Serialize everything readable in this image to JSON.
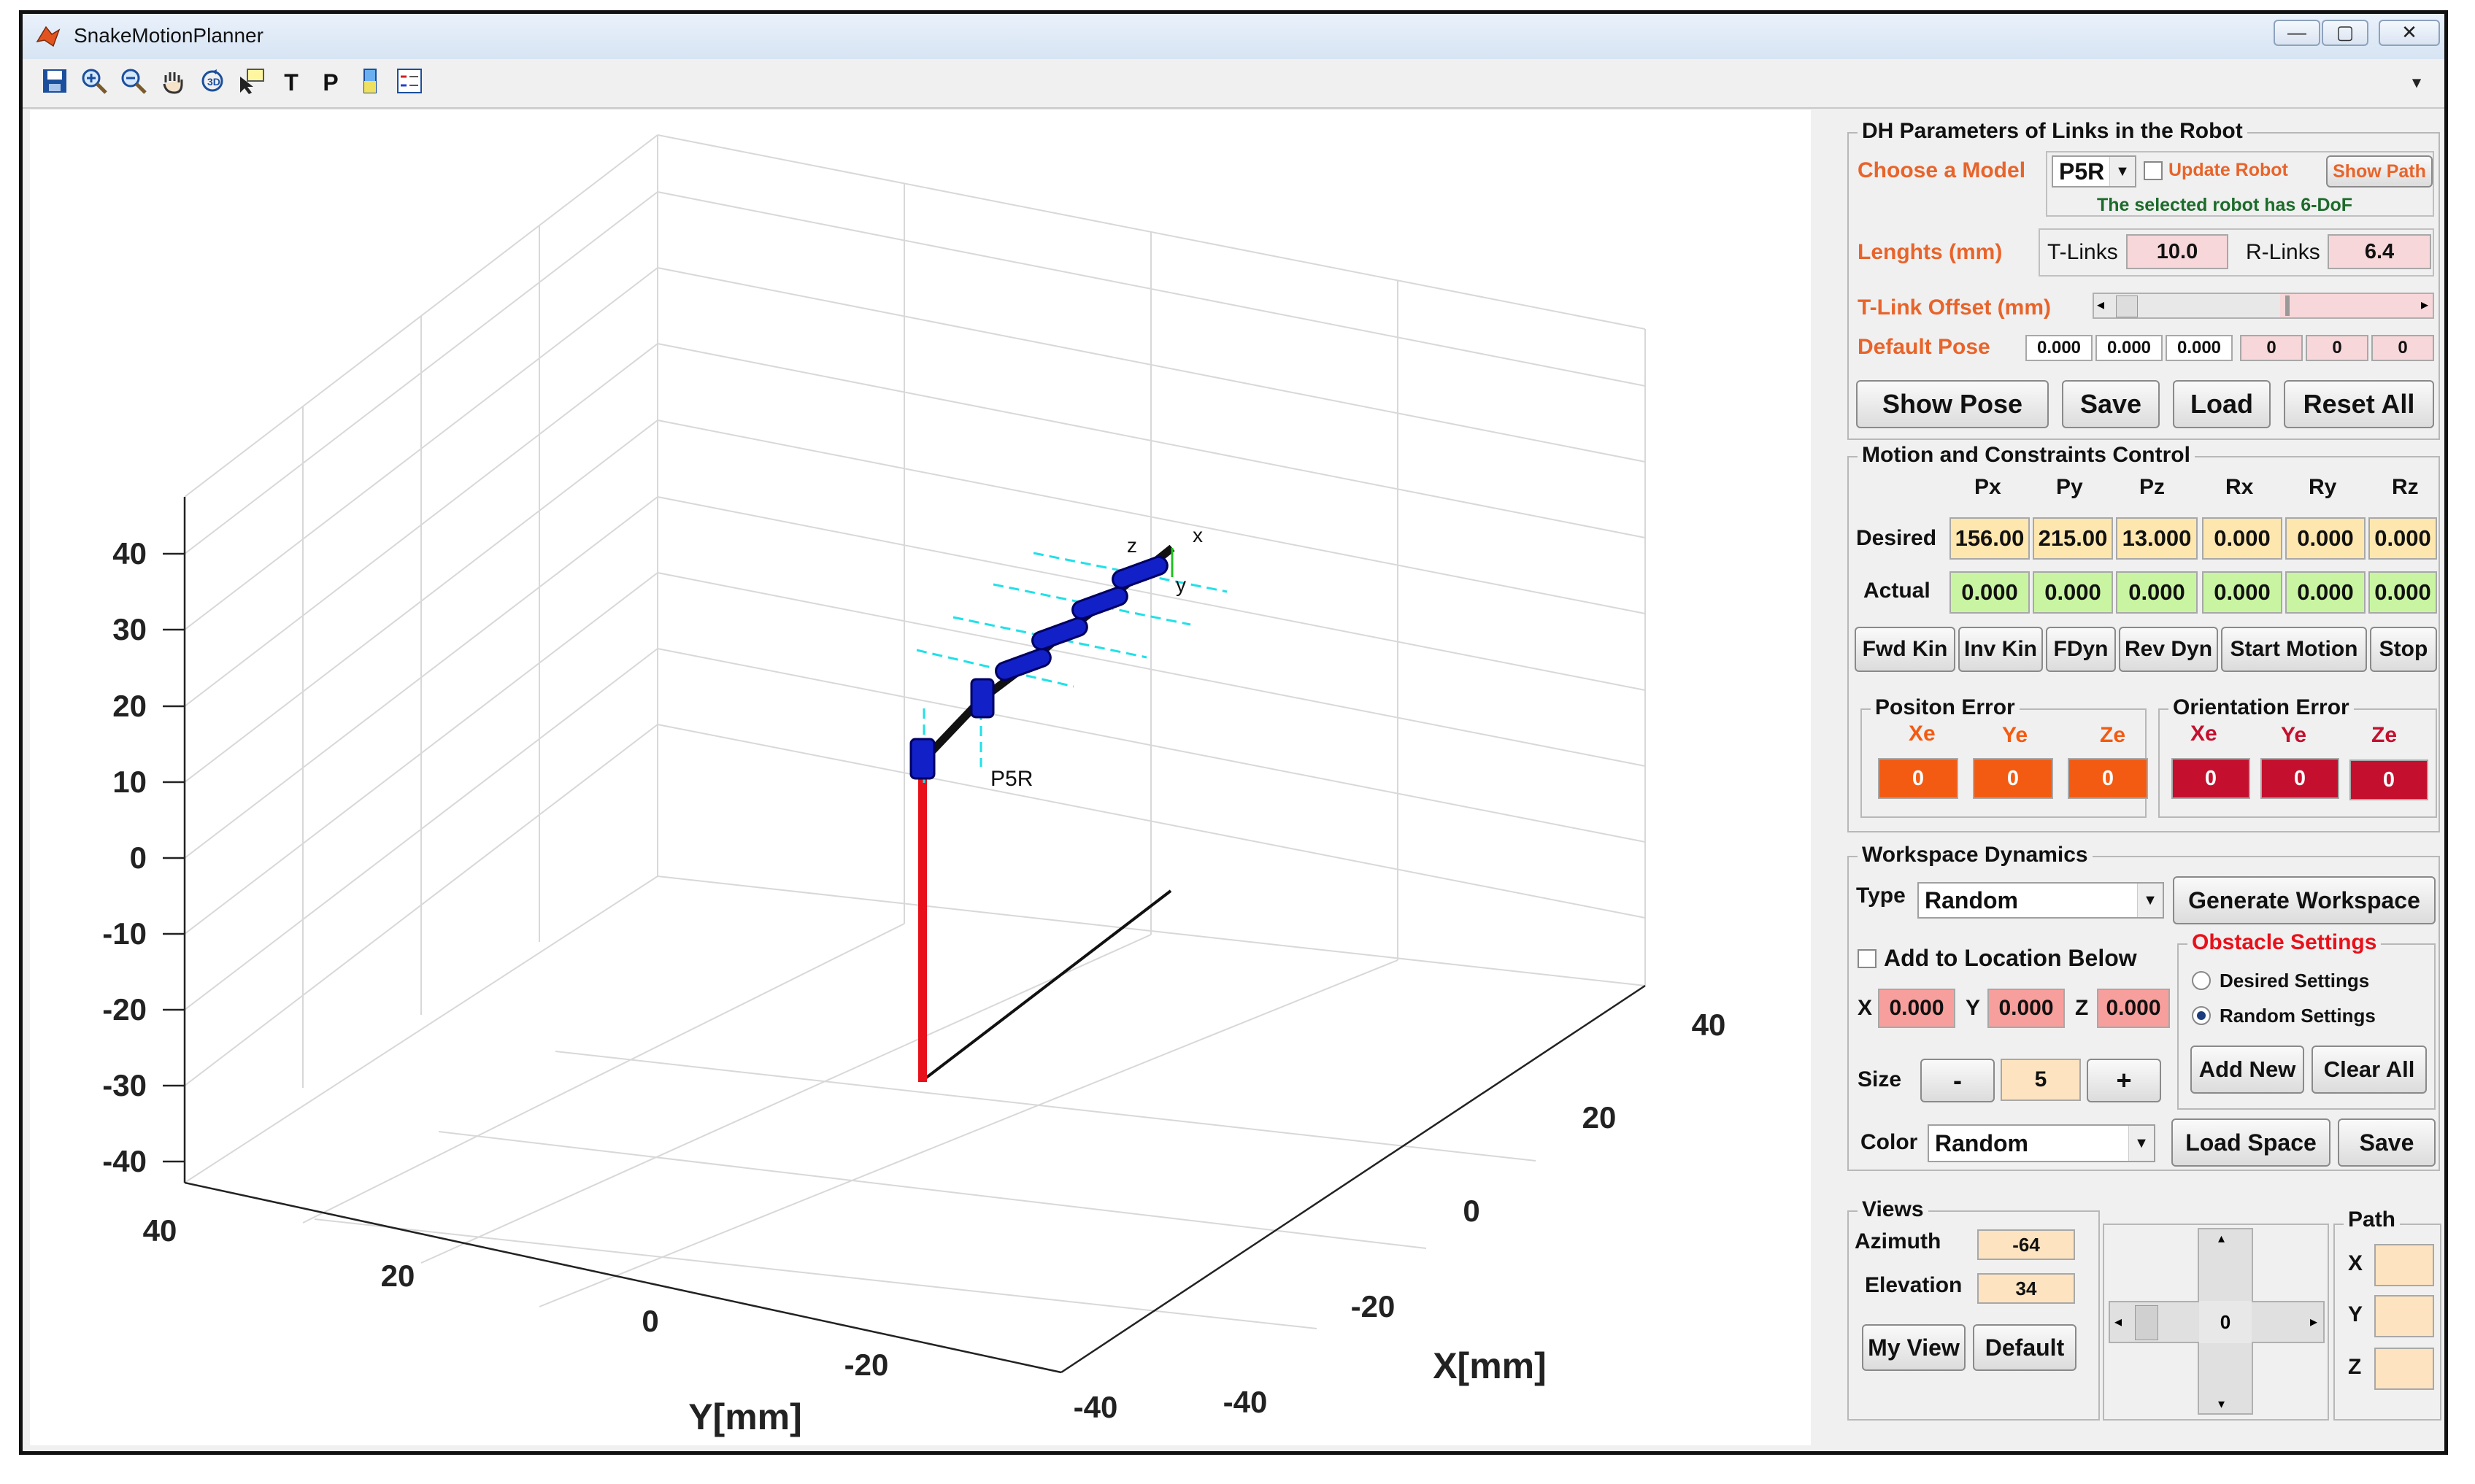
{
  "window": {
    "title": "SnakeMotionPlanner",
    "minimize": "—",
    "maximize": "▢",
    "close": "✕"
  },
  "toolbar": {
    "text_tool": "T",
    "path_tool": "P",
    "collapse_glyph": "▾"
  },
  "plot": {
    "xlabel": "X[mm]",
    "ylabel": "Y[mm]",
    "z_ticks": [
      "40",
      "30",
      "20",
      "10",
      "0",
      "-10",
      "-20",
      "-30",
      "-40"
    ],
    "y_ticks": [
      "40",
      "20",
      "0",
      "-20",
      "-40"
    ],
    "x_ticks": [
      "40",
      "20",
      "0",
      "-20",
      "-40"
    ],
    "robot_label": "P5R",
    "frame_labels": {
      "x": "x",
      "y": "y",
      "z": "z"
    },
    "colors": {
      "base_link": "#e8101a",
      "robot_links": "#111111",
      "joints": "#1220c8",
      "axes_guides": "#20e0e8"
    }
  },
  "dh": {
    "title": "DH Parameters of Links in the Robot",
    "choose_model_label": "Choose a Model",
    "model_value": "P5R",
    "update_robot_label": "Update Robot",
    "show_path_label": "Show Path",
    "dof_text": "The selected robot has 6-DoF",
    "lengths_label": "Lenghts (mm)",
    "t_links_label": "T-Links",
    "t_links_value": "10.0",
    "r_links_label": "R-Links",
    "r_links_value": "6.4",
    "offset_label": "T-Link Offset (mm)",
    "default_pose_label": "Default Pose",
    "default_pose": [
      "0.000",
      "0.000",
      "0.000",
      "0",
      "0",
      "0"
    ],
    "buttons": {
      "show_pose": "Show Pose",
      "save": "Save",
      "load": "Load",
      "reset_all": "Reset All"
    }
  },
  "motion": {
    "title": "Motion and Constraints Control",
    "columns": [
      "Px",
      "Py",
      "Pz",
      "Rx",
      "Ry",
      "Rz"
    ],
    "desired_label": "Desired",
    "desired": [
      "156.00",
      "215.00",
      "13.000",
      "0.000",
      "0.000",
      "0.000"
    ],
    "actual_label": "Actual",
    "actual": [
      "0.000",
      "0.000",
      "0.000",
      "0.000",
      "0.000",
      "0.000"
    ],
    "buttons": [
      "Fwd Kin",
      "Inv Kin",
      "FDyn",
      "Rev Dyn",
      "Start Motion",
      "Stop"
    ],
    "position_error": {
      "title": "Positon Error",
      "labels": [
        "Xe",
        "Ye",
        "Ze"
      ],
      "values": [
        "0",
        "0",
        "0"
      ]
    },
    "orientation_error": {
      "title": "Orientation Error",
      "labels": [
        "Xe",
        "Ye",
        "Ze"
      ],
      "values": [
        "0",
        "0",
        "0"
      ]
    }
  },
  "workspace": {
    "title": "Workspace Dynamics",
    "type_label": "Type",
    "type_value": "Random",
    "generate_label": "Generate Workspace",
    "add_location_label": "Add to Location Below",
    "x_label": "X",
    "x_value": "0.000",
    "y_label": "Y",
    "y_value": "0.000",
    "z_label": "Z",
    "z_value": "0.000",
    "obstacle_title": "Obstacle Settings",
    "desired_settings": "Desired Settings",
    "random_settings": "Random Settings",
    "add_new": "Add New",
    "clear_all": "Clear All",
    "size_label": "Size",
    "minus": "-",
    "size_value": "5",
    "plus": "+",
    "color_label": "Color",
    "color_value": "Random",
    "load_space": "Load Space",
    "save": "Save"
  },
  "views": {
    "title": "Views",
    "azimuth_label": "Azimuth",
    "azimuth_value": "-64",
    "elevation_label": "Elevation",
    "elevation_value": "34",
    "my_view": "My View",
    "default": "Default",
    "slider_value": "0",
    "path_title": "Path",
    "path_x": "X",
    "path_y": "Y",
    "path_z": "Z"
  }
}
